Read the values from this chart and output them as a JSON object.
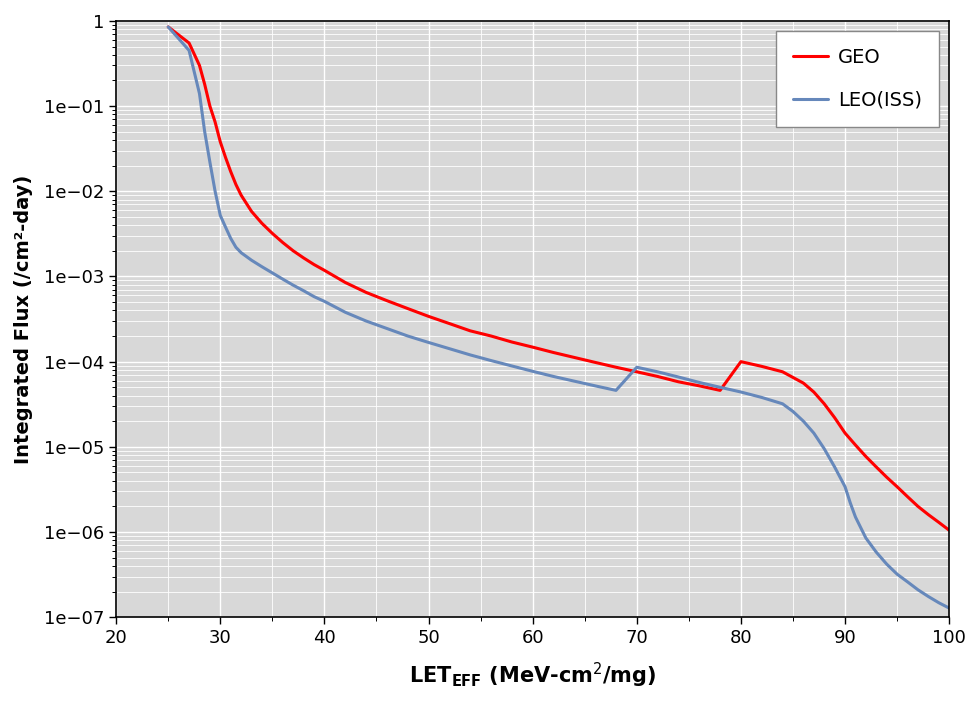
{
  "xlabel": "LET$_{\\mathrm{EFF}}$ (MeV-cm$^2$/mg)",
  "ylabel": "Integrated Flux (/cm$^2$-day)",
  "xlim": [
    20,
    100
  ],
  "ylim": [
    1e-07,
    1.0
  ],
  "geo_color": "#ff0000",
  "leo_color": "#6688bb",
  "line_width": 2.2,
  "legend_geo": "GEO",
  "legend_leo": "LEO(ISS)",
  "plot_bg": "#d8d8d8",
  "fig_bg": "#ffffff",
  "geo_x": [
    25.0,
    27.0,
    28.0,
    28.5,
    29.0,
    29.5,
    30.0,
    30.5,
    31.0,
    31.5,
    32.0,
    33.0,
    34.0,
    35.0,
    36.0,
    37.0,
    38.0,
    39.0,
    40.0,
    42.0,
    44.0,
    46.0,
    48.0,
    50.0,
    52.0,
    54.0,
    56.0,
    58.0,
    60.0,
    62.0,
    64.0,
    66.0,
    68.0,
    70.0,
    72.0,
    74.0,
    76.0,
    78.0,
    80.0,
    82.0,
    84.0,
    86.0,
    87.0,
    88.0,
    89.0,
    90.0,
    91.0,
    92.0,
    93.0,
    94.0,
    95.0,
    96.0,
    97.0,
    98.0,
    99.0,
    100.0
  ],
  "geo_y": [
    0.85,
    0.55,
    0.3,
    0.18,
    0.1,
    0.065,
    0.038,
    0.025,
    0.017,
    0.012,
    0.009,
    0.0058,
    0.0042,
    0.0032,
    0.0025,
    0.002,
    0.00165,
    0.00138,
    0.00118,
    0.00085,
    0.00065,
    0.00052,
    0.00042,
    0.00034,
    0.00028,
    0.00023,
    0.0002,
    0.00017,
    0.000148,
    0.000128,
    0.000112,
    9.8e-05,
    8.6e-05,
    7.6e-05,
    6.7e-05,
    5.8e-05,
    5.2e-05,
    4.6e-05,
    0.0001,
    8.8e-05,
    7.6e-05,
    5.6e-05,
    4.4e-05,
    3.2e-05,
    2.2e-05,
    1.45e-05,
    1.05e-05,
    7.7e-06,
    5.8e-06,
    4.4e-06,
    3.4e-06,
    2.6e-06,
    2e-06,
    1.6e-06,
    1.3e-06,
    1.05e-06
  ],
  "leo_x": [
    25.0,
    27.0,
    28.0,
    28.5,
    29.0,
    29.5,
    30.0,
    30.5,
    31.0,
    31.5,
    32.0,
    33.0,
    34.0,
    35.0,
    36.0,
    37.0,
    38.0,
    39.0,
    40.0,
    42.0,
    44.0,
    46.0,
    48.0,
    50.0,
    52.0,
    54.0,
    56.0,
    58.0,
    60.0,
    62.0,
    64.0,
    66.0,
    68.0,
    70.0,
    72.0,
    74.0,
    76.0,
    78.0,
    80.0,
    82.0,
    84.0,
    85.0,
    86.0,
    87.0,
    88.0,
    89.0,
    90.0,
    90.5,
    91.0,
    92.0,
    93.0,
    94.0,
    95.0,
    96.0,
    97.0,
    98.0,
    99.0,
    100.0
  ],
  "leo_y": [
    0.85,
    0.45,
    0.14,
    0.05,
    0.022,
    0.01,
    0.0052,
    0.0038,
    0.0028,
    0.0022,
    0.0019,
    0.00155,
    0.0013,
    0.0011,
    0.00093,
    0.00079,
    0.00068,
    0.00058,
    0.00051,
    0.00038,
    0.0003,
    0.000245,
    0.0002,
    0.000168,
    0.000142,
    0.00012,
    0.000103,
    8.9e-05,
    7.7e-05,
    6.7e-05,
    5.9e-05,
    5.2e-05,
    4.6e-05,
    8.6e-05,
    7.6e-05,
    6.6e-05,
    5.7e-05,
    5e-05,
    4.4e-05,
    3.8e-05,
    3.2e-05,
    2.6e-05,
    2e-05,
    1.45e-05,
    9.5e-06,
    5.8e-06,
    3.4e-06,
    2.2e-06,
    1.5e-06,
    8.5e-07,
    5.8e-07,
    4.2e-07,
    3.2e-07,
    2.6e-07,
    2.1e-07,
    1.75e-07,
    1.48e-07,
    1.28e-07
  ]
}
